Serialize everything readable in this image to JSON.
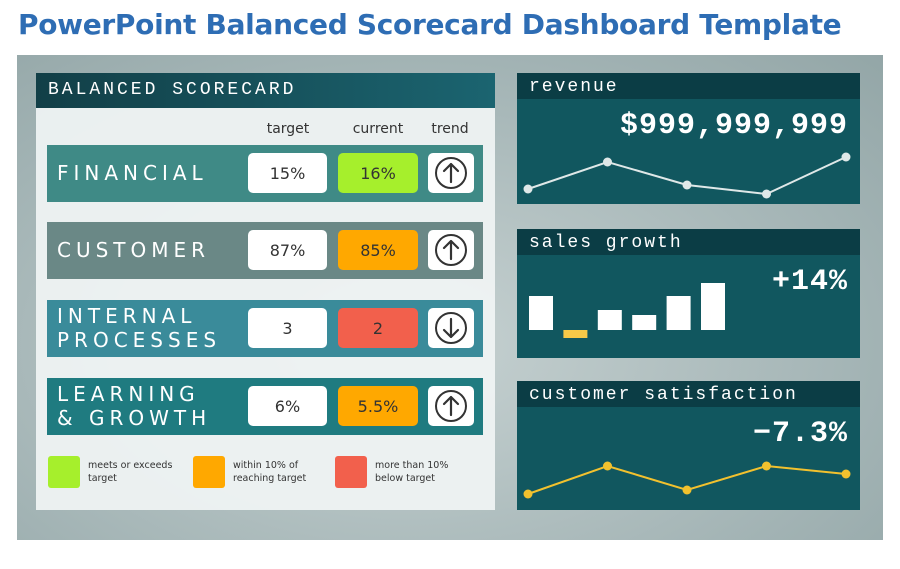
{
  "title": "PowerPoint Balanced Scorecard Dashboard Template",
  "scorecard": {
    "title": "BALANCED SCORECARD",
    "columns": [
      "target",
      "current",
      "trend"
    ],
    "rows": [
      {
        "label": [
          "FINANCIAL"
        ],
        "color": "#3f8a86",
        "target": "15%",
        "current": "16%",
        "current_color": "#a6ef2c",
        "trend": "up"
      },
      {
        "label": [
          "CUSTOMER"
        ],
        "color": "#6a8886",
        "target": "87%",
        "current": "85%",
        "current_color": "#ffa800",
        "trend": "up"
      },
      {
        "label": [
          "INTERNAL",
          "PROCESSES"
        ],
        "color": "#3a8b9a",
        "target": "3",
        "current": "2",
        "current_color": "#f2604c",
        "trend": "down"
      },
      {
        "label": [
          "LEARNING",
          "& GROWTH"
        ],
        "color": "#1f7b80",
        "target": "6%",
        "current": "5.5%",
        "current_color": "#ffa800",
        "trend": "up"
      }
    ],
    "legend": [
      {
        "color": "#a6ef2c",
        "label": "meets or exceeds target"
      },
      {
        "color": "#ffa800",
        "label": "within 10% of reaching target"
      },
      {
        "color": "#f2604c",
        "label": "more than 10% below target"
      }
    ]
  },
  "panels": [
    {
      "title": "revenue",
      "value": "$999,999,999",
      "type": "line",
      "color": "#dfe8e8",
      "values": [
        11,
        38,
        15,
        6,
        43
      ]
    },
    {
      "title": "sales growth",
      "value": "+14%",
      "type": "bar",
      "color": "#ffffff",
      "negative_color": "#f7c948",
      "values": [
        34,
        -8,
        20,
        15,
        34,
        47
      ]
    },
    {
      "title": "customer satisfaction",
      "value": "−7.3%",
      "type": "line",
      "color": "#f2c12e",
      "values": [
        12,
        40,
        16,
        40,
        32
      ]
    }
  ]
}
